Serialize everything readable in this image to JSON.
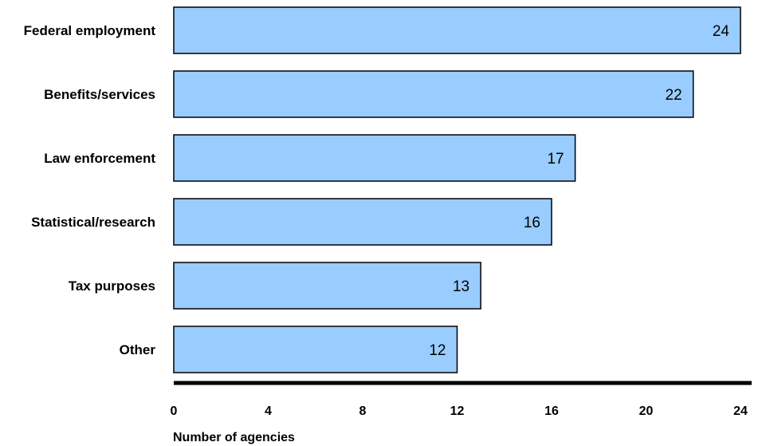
{
  "chart_data": {
    "type": "bar",
    "orientation": "horizontal",
    "categories": [
      "Federal employment",
      "Benefits/services",
      "Law enforcement",
      "Statistical/research",
      "Tax purposes",
      "Other"
    ],
    "values": [
      24,
      22,
      17,
      16,
      13,
      12
    ],
    "value_labels": [
      "24",
      "22",
      "17",
      "16",
      "13",
      "12"
    ],
    "xlabel": "Number of agencies",
    "xlim": [
      0,
      24
    ],
    "xticks": [
      0,
      4,
      8,
      12,
      16,
      20,
      24
    ],
    "xtick_labels": [
      "0",
      "4",
      "8",
      "12",
      "16",
      "20",
      "24"
    ],
    "grid": false,
    "bar_color": "#99ccff",
    "bar_edge_color": "#000000"
  }
}
